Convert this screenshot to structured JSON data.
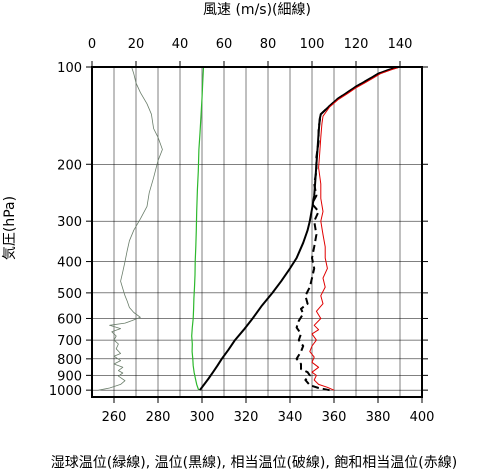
{
  "chart_data": {
    "type": "line",
    "title": "",
    "top_axis_label": "風速 (m/s)(細線)",
    "bottom_axis_label": "湿球温位(緑線), 温位(黒線), 相当温位(破線), 飽和相当温位(赤線)",
    "ylabel": "気圧(hPa)",
    "xlim": [
      250,
      400
    ],
    "wind_xlim": [
      0,
      150
    ],
    "ylim": [
      100,
      1050
    ],
    "y_scale": "log",
    "y_ticks": [
      "100",
      "200",
      "300",
      "400",
      "500",
      "600",
      "700",
      "800",
      "900",
      "1000"
    ],
    "x_ticks": [
      "260",
      "280",
      "300",
      "320",
      "340",
      "360",
      "380",
      "400"
    ],
    "wind_ticks": [
      "0",
      "20",
      "40",
      "60",
      "80",
      "100",
      "120",
      "140"
    ],
    "grid": true,
    "series": [
      {
        "key": "wind_speed",
        "unit": "m/s",
        "color": "#6a7d6a",
        "style": "thin",
        "points": [
          [
            3,
            1000
          ],
          [
            8,
            985
          ],
          [
            13,
            960
          ],
          [
            15,
            935
          ],
          [
            12,
            905
          ],
          [
            14,
            885
          ],
          [
            12,
            870
          ],
          [
            14,
            850
          ],
          [
            10,
            830
          ],
          [
            13,
            810
          ],
          [
            10,
            785
          ],
          [
            13,
            770
          ],
          [
            11,
            745
          ],
          [
            12,
            720
          ],
          [
            10,
            700
          ],
          [
            11,
            680
          ],
          [
            9,
            660
          ],
          [
            13,
            645
          ],
          [
            8,
            630
          ],
          [
            15,
            620
          ],
          [
            18,
            610
          ],
          [
            22,
            595
          ],
          [
            19,
            575
          ],
          [
            17,
            555
          ],
          [
            16,
            530
          ],
          [
            15,
            510
          ],
          [
            14,
            485
          ],
          [
            13,
            460
          ],
          [
            14,
            430
          ],
          [
            15,
            400
          ],
          [
            16,
            370
          ],
          [
            17,
            345
          ],
          [
            19,
            320
          ],
          [
            22,
            295
          ],
          [
            25,
            270
          ],
          [
            26,
            245
          ],
          [
            28,
            220
          ],
          [
            30,
            195
          ],
          [
            32,
            180
          ],
          [
            30,
            165
          ],
          [
            28,
            155
          ],
          [
            27,
            140
          ],
          [
            25,
            130
          ],
          [
            22,
            120
          ],
          [
            20,
            112
          ],
          [
            19,
            105
          ],
          [
            18,
            100
          ]
        ]
      },
      {
        "key": "wet_bulb_potential_temperature",
        "unit": "K",
        "color": "#2db82d",
        "style": "solid",
        "points": [
          [
            298.5,
            1000
          ],
          [
            297.6,
            960
          ],
          [
            297.0,
            920
          ],
          [
            296.4,
            880
          ],
          [
            296.0,
            840
          ],
          [
            295.8,
            800
          ],
          [
            295.5,
            760
          ],
          [
            295.6,
            720
          ],
          [
            295.3,
            680
          ],
          [
            295.6,
            640
          ],
          [
            296.0,
            600
          ],
          [
            296.2,
            560
          ],
          [
            296.3,
            520
          ],
          [
            296.6,
            480
          ],
          [
            296.8,
            440
          ],
          [
            296.9,
            400
          ],
          [
            297.2,
            360
          ],
          [
            297.4,
            320
          ],
          [
            297.6,
            280
          ],
          [
            297.9,
            240
          ],
          [
            298.3,
            210
          ],
          [
            298.6,
            180
          ],
          [
            299.1,
            160
          ],
          [
            299.6,
            140
          ],
          [
            300.0,
            125
          ],
          [
            300.3,
            112
          ],
          [
            300.7,
            100
          ]
        ]
      },
      {
        "key": "potential_temperature",
        "unit": "K",
        "color": "#000000",
        "style": "solid",
        "points": [
          [
            299.0,
            1000
          ],
          [
            301,
            960
          ],
          [
            303,
            920
          ],
          [
            305,
            880
          ],
          [
            307,
            840
          ],
          [
            309,
            800
          ],
          [
            312,
            750
          ],
          [
            315,
            700
          ],
          [
            319,
            650
          ],
          [
            323,
            600
          ],
          [
            327,
            550
          ],
          [
            332,
            500
          ],
          [
            336,
            460
          ],
          [
            340,
            420
          ],
          [
            343,
            390
          ],
          [
            346,
            350
          ],
          [
            348,
            320
          ],
          [
            349,
            300
          ],
          [
            350,
            275
          ],
          [
            351,
            250
          ],
          [
            351.5,
            225
          ],
          [
            352,
            200
          ],
          [
            352.5,
            180
          ],
          [
            353,
            160
          ],
          [
            353.5,
            145
          ],
          [
            354,
            140
          ],
          [
            358,
            132
          ],
          [
            362,
            125
          ],
          [
            366,
            120
          ],
          [
            370,
            115
          ],
          [
            373,
            112
          ],
          [
            377,
            108
          ],
          [
            380,
            105
          ],
          [
            385,
            102
          ],
          [
            389,
            100
          ]
        ]
      },
      {
        "key": "equivalent_potential_temperature",
        "unit": "K",
        "color": "#000000",
        "style": "dashed",
        "points": [
          [
            358,
            1000
          ],
          [
            353,
            985
          ],
          [
            349,
            965
          ],
          [
            347,
            930
          ],
          [
            349,
            900
          ],
          [
            348,
            880
          ],
          [
            345,
            860
          ],
          [
            345,
            830
          ],
          [
            343,
            800
          ],
          [
            345,
            760
          ],
          [
            346,
            730
          ],
          [
            344,
            700
          ],
          [
            345,
            670
          ],
          [
            343,
            640
          ],
          [
            344,
            610
          ],
          [
            346,
            580
          ],
          [
            345,
            560
          ],
          [
            348,
            540
          ],
          [
            347,
            510
          ],
          [
            349,
            480
          ],
          [
            350,
            450
          ],
          [
            351,
            420
          ],
          [
            350,
            390
          ],
          [
            351,
            360
          ],
          [
            352,
            330
          ],
          [
            351,
            300
          ],
          [
            353,
            280
          ],
          [
            350,
            265
          ],
          [
            352,
            250
          ],
          [
            351,
            230
          ],
          [
            352,
            210
          ],
          [
            352,
            190
          ],
          [
            353,
            170
          ],
          [
            353,
            155
          ],
          [
            354,
            140
          ],
          [
            358,
            132
          ],
          [
            362,
            125
          ],
          [
            366,
            120
          ],
          [
            370,
            115
          ],
          [
            373,
            112
          ],
          [
            377,
            108
          ],
          [
            380,
            105
          ],
          [
            385,
            102
          ],
          [
            389,
            100
          ]
        ]
      },
      {
        "key": "saturated_equivalent_potential_temperature",
        "unit": "K",
        "color": "#e00000",
        "style": "solid",
        "points": [
          [
            360,
            1000
          ],
          [
            357,
            980
          ],
          [
            353,
            960
          ],
          [
            351,
            930
          ],
          [
            352,
            900
          ],
          [
            350,
            880
          ],
          [
            353,
            850
          ],
          [
            350,
            820
          ],
          [
            351,
            790
          ],
          [
            349,
            760
          ],
          [
            350,
            730
          ],
          [
            352,
            700
          ],
          [
            350,
            670
          ],
          [
            353,
            650
          ],
          [
            351,
            630
          ],
          [
            354,
            600
          ],
          [
            352,
            570
          ],
          [
            355,
            540
          ],
          [
            354,
            510
          ],
          [
            356,
            480
          ],
          [
            355,
            450
          ],
          [
            357,
            420
          ],
          [
            356,
            390
          ],
          [
            356,
            360
          ],
          [
            355,
            330
          ],
          [
            354,
            300
          ],
          [
            355,
            280
          ],
          [
            354,
            255
          ],
          [
            354,
            230
          ],
          [
            353,
            205
          ],
          [
            353.5,
            185
          ],
          [
            354,
            165
          ],
          [
            354.5,
            150
          ],
          [
            355,
            142
          ],
          [
            358,
            133
          ],
          [
            362,
            126
          ],
          [
            366,
            121
          ],
          [
            370,
            116
          ],
          [
            374,
            112
          ],
          [
            378,
            108
          ],
          [
            381,
            105
          ],
          [
            386,
            102
          ],
          [
            390,
            100
          ]
        ]
      }
    ]
  }
}
